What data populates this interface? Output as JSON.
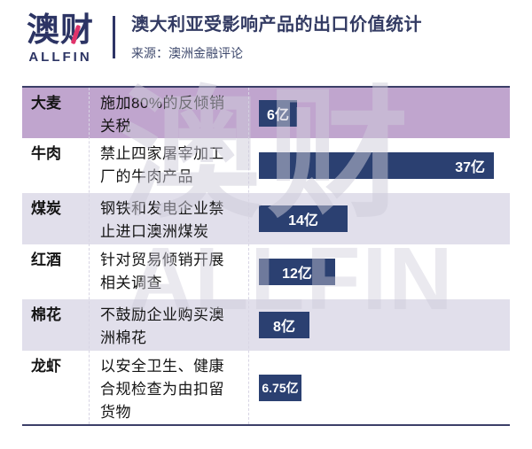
{
  "header": {
    "logo_cn": "澳财",
    "logo_en": "ALLFIN",
    "title": "澳大利亚受影响产品的出口价值统计",
    "source": "来源：澳洲金融评论"
  },
  "colors": {
    "navy_bar": "#2b4071",
    "logo_navy": "#2c3464",
    "logo_red": "#e0336a",
    "title_navy": "#333b63",
    "row_purple": "#c0a5ce",
    "row_lavender": "#e1dfeb",
    "table_line": "#3c3f68"
  },
  "watermark": {
    "cn": "澳财",
    "en": "ALLFIN"
  },
  "chart_data": {
    "type": "bar",
    "orientation": "horizontal",
    "title": "澳大利亚受影响产品的出口价值统计",
    "source": "澳洲金融评论",
    "unit": "亿",
    "categories": [
      "大麦",
      "牛肉",
      "煤炭",
      "红酒",
      "棉花",
      "龙虾"
    ],
    "values": [
      6,
      37,
      14,
      12,
      8,
      6.75
    ],
    "bar_labels": [
      "6亿",
      "37亿",
      "14亿",
      "12亿",
      "8亿",
      "6.75亿"
    ],
    "descriptions": [
      "施加80%的反倾销关税",
      "禁止四家屠宰加工厂的牛肉产品",
      "钢铁和发电企业禁止进口澳洲煤炭",
      "针对贸易倾销开展相关调查",
      "不鼓励企业购买澳洲棉花",
      "以安全卫生、健康合规检查为由扣留货物"
    ],
    "xlim": [
      0,
      40
    ],
    "grid": false,
    "legend": false,
    "bar_color": "#2b4071"
  },
  "rows": [
    {
      "name": "大麦",
      "desc": "施加80%的反倾销关税",
      "label": "6亿"
    },
    {
      "name": "牛肉",
      "desc": "禁止四家屠宰加工厂的牛肉产品",
      "label": "37亿"
    },
    {
      "name": "煤炭",
      "desc": "钢铁和发电企业禁止进口澳洲煤炭",
      "label": "14亿"
    },
    {
      "name": "红酒",
      "desc": "针对贸易倾销开展相关调查",
      "label": "12亿"
    },
    {
      "name": "棉花",
      "desc": "不鼓励企业购买澳洲棉花",
      "label": "8亿"
    },
    {
      "name": "龙虾",
      "desc": "以安全卫生、健康合规检查为由扣留货物",
      "label": "6.75亿"
    }
  ]
}
